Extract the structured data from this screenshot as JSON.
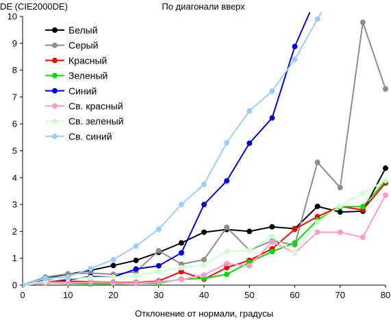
{
  "chart_data": {
    "type": "line",
    "title": "По диагонали вверх",
    "ylabel": "DE (CIE2000DE)",
    "xlabel": "Отклонение от нормали, градусы",
    "xlim": [
      0,
      80
    ],
    "ylim": [
      0,
      10
    ],
    "x_ticks": [
      "0",
      "10",
      "20",
      "30",
      "40",
      "50",
      "60",
      "70",
      "80"
    ],
    "y_ticks": [
      "0",
      "1",
      "2",
      "3",
      "4",
      "5",
      "6",
      "7",
      "8",
      "9",
      "10"
    ],
    "grid": false,
    "legend_position": "top-left",
    "x": [
      0,
      5,
      10,
      15,
      20,
      25,
      30,
      35,
      40,
      45,
      50,
      55,
      60,
      65,
      70,
      75,
      80
    ],
    "series": [
      {
        "name": "Белый",
        "color": "#000000",
        "values": [
          0,
          0.27,
          0.4,
          0.55,
          0.73,
          0.92,
          1.22,
          1.57,
          1.97,
          2.07,
          2.0,
          2.17,
          2.1,
          2.93,
          2.72,
          2.75,
          4.35
        ]
      },
      {
        "name": "Серый",
        "color": "#8c8c8c",
        "values": [
          0,
          0.3,
          0.42,
          0.45,
          0.4,
          0.5,
          1.28,
          0.78,
          0.95,
          2.15,
          1.3,
          1.65,
          1.5,
          4.57,
          3.63,
          9.78,
          7.3
        ]
      },
      {
        "name": "Красный",
        "color": "#ff0000",
        "values": [
          0,
          0.15,
          0.15,
          0.12,
          0.1,
          0.1,
          0.15,
          0.5,
          0.22,
          0.65,
          0.92,
          1.35,
          2.08,
          2.55,
          2.93,
          2.8,
          3.8
        ]
      },
      {
        "name": "Зеленый",
        "color": "#00dd00",
        "values": [
          0,
          0.08,
          0.08,
          0.05,
          0.05,
          0.08,
          0.08,
          0.22,
          0.25,
          0.4,
          0.85,
          1.25,
          1.57,
          2.42,
          2.92,
          2.92,
          3.87
        ]
      },
      {
        "name": "Синий",
        "color": "#0000dd",
        "values": [
          0,
          0.18,
          0.2,
          0.32,
          0.3,
          0.6,
          0.72,
          1.2,
          3.0,
          3.88,
          5.28,
          6.22,
          8.88,
          10.8,
          null,
          null,
          null
        ]
      },
      {
        "name": "Св. красный",
        "color": "#ff99cc",
        "values": [
          0,
          0.08,
          0.1,
          0.1,
          0.08,
          0.08,
          0.12,
          0.2,
          0.38,
          0.8,
          0.72,
          1.6,
          1.2,
          1.97,
          1.97,
          1.78,
          3.35
        ]
      },
      {
        "name": "Св. зеленый",
        "color": "#ccffcc",
        "values": [
          0,
          0.15,
          0.25,
          0.28,
          0.3,
          0.35,
          0.5,
          0.65,
          0.75,
          1.25,
          1.3,
          1.82,
          1.2,
          2.35,
          2.95,
          3.42,
          3.9
        ]
      },
      {
        "name": "Св. синий",
        "color": "#99ccff",
        "values": [
          0,
          0.25,
          0.3,
          0.62,
          0.95,
          1.45,
          2.08,
          3.0,
          3.75,
          5.3,
          6.48,
          7.22,
          8.4,
          9.9,
          11.3,
          null,
          null
        ]
      }
    ]
  }
}
